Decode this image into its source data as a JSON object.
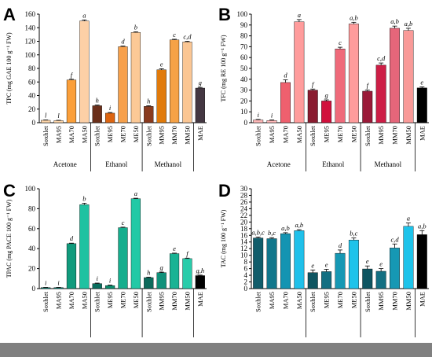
{
  "chart_data": [
    {
      "type": "bar",
      "panel_letter": "A",
      "ylabel": "TPC (mg GAE 100 g⁻¹ FW)",
      "ylim": [
        0,
        160
      ],
      "yticks": [
        0,
        20,
        40,
        60,
        80,
        100,
        120,
        140,
        160
      ],
      "grid": false,
      "legend": "none",
      "bars": [
        {
          "label": "Soxhlet",
          "value": 3.5,
          "error": 0.5,
          "sig": "l",
          "color": "#fdd5a8"
        },
        {
          "label": "MA95",
          "value": 3.0,
          "error": 0.5,
          "sig": "l",
          "color": "#fdd5a8"
        },
        {
          "label": "MA70",
          "value": 63,
          "error": 1,
          "sig": "f",
          "color": "#fb9f3a"
        },
        {
          "label": "MA50",
          "value": 150,
          "error": 1.5,
          "sig": "a",
          "color": "#fdd0a6"
        },
        {
          "label": "Soxhlet",
          "value": 25,
          "error": 1,
          "sig": "h",
          "color": "#6b2f1a"
        },
        {
          "label": "ME95",
          "value": 14,
          "error": 1,
          "sig": "i",
          "color": "#dd6511"
        },
        {
          "label": "ME70",
          "value": 112,
          "error": 1,
          "sig": "d",
          "color": "#f7a04b"
        },
        {
          "label": "ME50",
          "value": 133,
          "error": 1,
          "sig": "b",
          "color": "#fcc996"
        },
        {
          "label": "Soxhlet",
          "value": 24,
          "error": 1,
          "sig": "h",
          "color": "#893a1e"
        },
        {
          "label": "MM95",
          "value": 78,
          "error": 1.5,
          "sig": "e",
          "color": "#e17a0a"
        },
        {
          "label": "MM70",
          "value": 122,
          "error": 1,
          "sig": "c",
          "color": "#f6a247"
        },
        {
          "label": "MM50",
          "value": 119,
          "error": 1,
          "sig": "c,d",
          "color": "#fbc693"
        },
        {
          "label": "MAE",
          "value": 51,
          "error": 1,
          "sig": "g",
          "color": "#443742"
        }
      ],
      "groups": [
        {
          "name": "Acetone",
          "from": 0,
          "to": 3
        },
        {
          "name": "Ethanol",
          "from": 4,
          "to": 7
        },
        {
          "name": "Methanol",
          "from": 8,
          "to": 11
        }
      ]
    },
    {
      "type": "bar",
      "panel_letter": "B",
      "ylabel": "TFC (mg RE 100 g⁻¹ FW)",
      "ylim": [
        0,
        100
      ],
      "yticks": [
        0,
        10,
        20,
        30,
        40,
        50,
        60,
        70,
        80,
        90,
        100
      ],
      "grid": false,
      "legend": "none",
      "bars": [
        {
          "label": "Soxhlet",
          "value": 2.5,
          "error": 0.5,
          "sig": "i",
          "color": "#ffb7b7"
        },
        {
          "label": "MA95",
          "value": 2.0,
          "error": 0.5,
          "sig": "i",
          "color": "#ffb7b7"
        },
        {
          "label": "MA70",
          "value": 37,
          "error": 2.5,
          "sig": "d",
          "color": "#ef606e"
        },
        {
          "label": "MA50",
          "value": 93,
          "error": 2,
          "sig": "a",
          "color": "#ff9c9c"
        },
        {
          "label": "Soxhlet",
          "value": 30,
          "error": 1,
          "sig": "f",
          "color": "#8a1c30"
        },
        {
          "label": "ME95",
          "value": 20,
          "error": 1,
          "sig": "g",
          "color": "#d1103c"
        },
        {
          "label": "ME70",
          "value": 68,
          "error": 1.5,
          "sig": "c",
          "color": "#ef6a7a"
        },
        {
          "label": "ME50",
          "value": 91,
          "error": 1.5,
          "sig": "a,b",
          "color": "#ff9c9c"
        },
        {
          "label": "Soxhlet",
          "value": 29,
          "error": 1,
          "sig": "f",
          "color": "#9a1a38"
        },
        {
          "label": "MM95",
          "value": 53,
          "error": 2,
          "sig": "c,d",
          "color": "#cd1e46"
        },
        {
          "label": "MM70",
          "value": 87,
          "error": 2,
          "sig": "a,b",
          "color": "#e5667a"
        },
        {
          "label": "MM50",
          "value": 85,
          "error": 2,
          "sig": "a,b",
          "color": "#f99a98"
        },
        {
          "label": "MAE",
          "value": 32,
          "error": 1,
          "sig": "e",
          "color": "#000000"
        }
      ],
      "groups": [
        {
          "name": "Acetone",
          "from": 0,
          "to": 3
        },
        {
          "name": "Ethanol",
          "from": 4,
          "to": 7
        },
        {
          "name": "Methanol",
          "from": 8,
          "to": 11
        }
      ]
    },
    {
      "type": "bar",
      "panel_letter": "C",
      "ylabel": "TPAC (mg PACE 100 g⁻¹ FW)",
      "ylim": [
        0,
        100
      ],
      "yticks": [
        0,
        20,
        40,
        60,
        80,
        100
      ],
      "grid": false,
      "legend": "none",
      "bars": [
        {
          "label": "Soxhlet",
          "value": 1.0,
          "error": 0.2,
          "sig": "i",
          "color": "#0b8f80"
        },
        {
          "label": "MA95",
          "value": 1.0,
          "error": 0.2,
          "sig": "i",
          "color": "#0b8f80"
        },
        {
          "label": "MA70",
          "value": 45,
          "error": 0.5,
          "sig": "d",
          "color": "#119b7d"
        },
        {
          "label": "MA50",
          "value": 84,
          "error": 1.5,
          "sig": "b",
          "color": "#1fc2a1"
        },
        {
          "label": "Soxhlet",
          "value": 5,
          "error": 0.5,
          "sig": "i",
          "color": "#0a6e5e"
        },
        {
          "label": "ME95",
          "value": 3,
          "error": 0.5,
          "sig": "i",
          "color": "#0b8f6f"
        },
        {
          "label": "ME70",
          "value": 61,
          "error": 0.5,
          "sig": "c",
          "color": "#16ae8e"
        },
        {
          "label": "ME50",
          "value": 90,
          "error": 0.5,
          "sig": "a",
          "color": "#22c9a6"
        },
        {
          "label": "Soxhlet",
          "value": 11,
          "error": 0.5,
          "sig": "h",
          "color": "#0c6a5b"
        },
        {
          "label": "MM95",
          "value": 16,
          "error": 0.5,
          "sig": "g",
          "color": "#10917a"
        },
        {
          "label": "MM70",
          "value": 35,
          "error": 0.5,
          "sig": "e",
          "color": "#19b394"
        },
        {
          "label": "MM50",
          "value": 30,
          "error": 0.5,
          "sig": "f",
          "color": "#29ccaa"
        },
        {
          "label": "MAE",
          "value": 13,
          "error": 0.5,
          "sig": "g,h",
          "color": "#000000"
        }
      ],
      "groups": []
    },
    {
      "type": "bar",
      "panel_letter": "D",
      "ylabel": "TAC (mg 100 g⁻¹ FW)",
      "ylim": [
        0,
        30
      ],
      "yticks": [
        0,
        2,
        4,
        6,
        8,
        10,
        12,
        14,
        16,
        18,
        20,
        22,
        24,
        26,
        28,
        30
      ],
      "grid": false,
      "legend": "none",
      "bars": [
        {
          "label": "Soxhlet",
          "value": 15.2,
          "error": 0.3,
          "sig": "a,b,c",
          "color": "#115d6b"
        },
        {
          "label": "MA95",
          "value": 15.0,
          "error": 0.3,
          "sig": "b,c",
          "color": "#12778c"
        },
        {
          "label": "MA70",
          "value": 16.5,
          "error": 0.3,
          "sig": "a,b",
          "color": "#1494b2"
        },
        {
          "label": "MA50",
          "value": 17.4,
          "error": 0.3,
          "sig": "a,b",
          "color": "#1fc0ea"
        },
        {
          "label": "Soxhlet",
          "value": 4.8,
          "error": 0.8,
          "sig": "e",
          "color": "#0e5561"
        },
        {
          "label": "ME95",
          "value": 5.1,
          "error": 0.7,
          "sig": "e",
          "color": "#136f82"
        },
        {
          "label": "ME70",
          "value": 10.6,
          "error": 1.0,
          "sig": "d",
          "color": "#1698b4"
        },
        {
          "label": "ME50",
          "value": 14.6,
          "error": 0.6,
          "sig": "b,c",
          "color": "#1ec3ea"
        },
        {
          "label": "Soxhlet",
          "value": 5.9,
          "error": 0.9,
          "sig": "e",
          "color": "#0e5561"
        },
        {
          "label": "MM95",
          "value": 5.2,
          "error": 0.8,
          "sig": "e",
          "color": "#136f82"
        },
        {
          "label": "MM70",
          "value": 12.2,
          "error": 1.2,
          "sig": "c,d",
          "color": "#1698b4"
        },
        {
          "label": "MM50",
          "value": 18.7,
          "error": 1.0,
          "sig": "a",
          "color": "#1ec3ea"
        },
        {
          "label": "MAE",
          "value": 16.2,
          "error": 1.2,
          "sig": "a,b",
          "color": "#000000"
        }
      ],
      "groups": []
    }
  ]
}
